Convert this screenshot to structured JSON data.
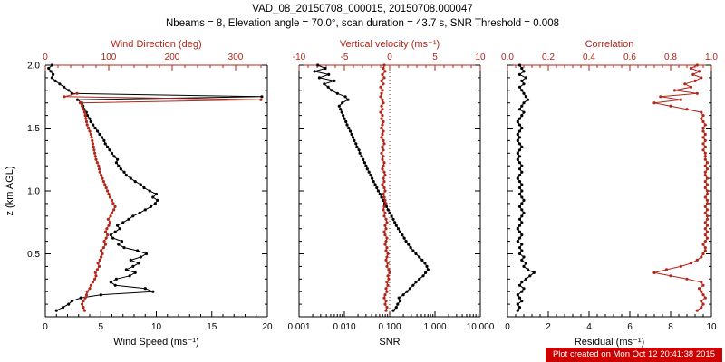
{
  "title": "VAD_08_20150708_000015, 20150708.000047",
  "subtitle": "Nbeams = 8, Elevation angle = 70.0°, scan duration = 43.7 s, SNR Threshold = 0.008",
  "footer": "Plot created on Mon Oct 12 20:41:38 2015",
  "colors": {
    "black": "#000000",
    "red": "#b3261a",
    "footer_bg": "#cc0000",
    "footer_fg": "#ffffff"
  },
  "chart_data": {
    "type": "line",
    "y_axis": {
      "label": "z (km AGL)",
      "range": [
        0,
        2
      ],
      "ticks": [
        0.5,
        1.0,
        1.5,
        2.0
      ],
      "tick_labels": [
        "0.5",
        "1.0",
        "1.5",
        "2.0"
      ]
    },
    "z": [
      0.05,
      0.075,
      0.1,
      0.125,
      0.15,
      0.175,
      0.2,
      0.225,
      0.25,
      0.275,
      0.3,
      0.325,
      0.35,
      0.375,
      0.4,
      0.425,
      0.45,
      0.475,
      0.5,
      0.525,
      0.55,
      0.575,
      0.6,
      0.625,
      0.65,
      0.675,
      0.7,
      0.725,
      0.75,
      0.775,
      0.8,
      0.825,
      0.85,
      0.875,
      0.9,
      0.925,
      0.95,
      0.975,
      1.0,
      1.025,
      1.05,
      1.075,
      1.1,
      1.125,
      1.15,
      1.175,
      1.2,
      1.225,
      1.25,
      1.275,
      1.3,
      1.325,
      1.35,
      1.375,
      1.4,
      1.425,
      1.45,
      1.475,
      1.5,
      1.525,
      1.55,
      1.575,
      1.6,
      1.625,
      1.65,
      1.675,
      1.7,
      1.725,
      1.75,
      1.775,
      1.8,
      1.825,
      1.85,
      1.875,
      1.9,
      1.925,
      1.95,
      1.975,
      2.0
    ],
    "panels": [
      {
        "name": "wind",
        "bottom_axis": {
          "label": "Wind Speed (ms⁻¹)",
          "scale": "linear",
          "range": [
            0,
            20
          ],
          "ticks": [
            0,
            5,
            10,
            15,
            20
          ],
          "tick_labels": [
            "0",
            "5",
            "10",
            "15",
            "20"
          ],
          "color": "black"
        },
        "top_axis": {
          "label": "Wind Direction (deg)",
          "scale": "linear",
          "range": [
            0,
            350
          ],
          "ticks": [
            0,
            100,
            200,
            300
          ],
          "tick_labels": [
            "0",
            "100",
            "200",
            "300"
          ],
          "color": "red"
        },
        "series": [
          {
            "name": "wind-speed",
            "axis": "bottom",
            "color": "black",
            "values": [
              1.0,
              1.6,
              2.1,
              2.4,
              3.2,
              5.0,
              9.7,
              9.0,
              6.3,
              5.9,
              6.4,
              7.6,
              8.1,
              7.3,
              7.9,
              8.4,
              7.7,
              8.6,
              9.1,
              8.3,
              7.1,
              6.6,
              6.9,
              6.1,
              5.9,
              6.3,
              6.7,
              6.5,
              7.0,
              7.5,
              7.9,
              8.5,
              9.0,
              9.5,
              9.9,
              10.1,
              9.7,
              10.0,
              9.4,
              8.9,
              8.6,
              8.1,
              7.7,
              7.3,
              7.1,
              6.8,
              6.6,
              6.4,
              6.5,
              6.2,
              6.0,
              5.8,
              5.6,
              5.4,
              5.3,
              5.1,
              4.9,
              4.7,
              4.5,
              4.3,
              4.1,
              4.0,
              3.8,
              3.7,
              3.5,
              3.4,
              3.3,
              2.9,
              19.5,
              2.4,
              2.1,
              1.7,
              1.3,
              0.9,
              0.6,
              0.7,
              0.5,
              0.3,
              0.6
            ]
          },
          {
            "name": "wind-direction",
            "axis": "top",
            "color": "red",
            "values": [
              62,
              60,
              58,
              60,
              63,
              65,
              66,
              70,
              72,
              75,
              78,
              80,
              79,
              82,
              85,
              83,
              86,
              88,
              90,
              88,
              92,
              95,
              93,
              96,
              98,
              95,
              97,
              100,
              102,
              99,
              103,
              105,
              108,
              110,
              107,
              105,
              102,
              100,
              98,
              96,
              94,
              92,
              90,
              88,
              86,
              85,
              84,
              82,
              80,
              79,
              78,
              77,
              76,
              75,
              74,
              73,
              72,
              70,
              68,
              66,
              65,
              64,
              63,
              62,
              60,
              58,
              55,
              340,
              30,
              50,
              null,
              null,
              null,
              null,
              null,
              null,
              null,
              null,
              null
            ]
          }
        ]
      },
      {
        "name": "snr",
        "bottom_axis": {
          "label": "SNR",
          "scale": "log",
          "range": [
            0.001,
            10
          ],
          "ticks": [
            0.001,
            0.01,
            0.1,
            1,
            10
          ],
          "tick_labels": [
            "0.001",
            "0.010",
            "0.100",
            "1.000",
            "10.000"
          ],
          "color": "black"
        },
        "top_axis": {
          "label": "Vertical velocity (ms⁻¹)",
          "scale": "linear",
          "range": [
            -10,
            10
          ],
          "ticks": [
            -10,
            -5,
            0,
            5,
            10
          ],
          "tick_labels": [
            "-10",
            "-5",
            "0",
            "5",
            "10"
          ],
          "color": "red"
        },
        "ref_line": {
          "axis": "top",
          "value": 0,
          "style": "dotted",
          "color": "red"
        },
        "series": [
          {
            "name": "snr",
            "axis": "bottom",
            "color": "black",
            "values": [
              0.12,
              0.14,
              0.15,
              0.17,
              0.16,
              0.2,
              0.24,
              0.28,
              0.33,
              0.38,
              0.45,
              0.55,
              0.62,
              0.7,
              0.66,
              0.6,
              0.52,
              0.45,
              0.38,
              0.33,
              0.29,
              0.26,
              0.23,
              0.21,
              0.19,
              0.17,
              0.155,
              0.14,
              0.13,
              0.12,
              0.11,
              0.1,
              0.092,
              0.085,
              0.078,
              0.072,
              0.066,
              0.061,
              0.056,
              0.052,
              0.048,
              0.044,
              0.041,
              0.038,
              0.035,
              0.032,
              0.03,
              0.028,
              0.026,
              0.024,
              0.022,
              0.021,
              0.019,
              0.018,
              0.0165,
              0.0155,
              0.0145,
              0.0135,
              0.0125,
              0.0115,
              0.0108,
              0.01,
              0.0094,
              0.0088,
              0.0082,
              0.0077,
              0.009,
              0.012,
              0.0105,
              0.007,
              0.0052,
              0.0044,
              0.0036,
              0.006,
              0.0028,
              0.0045,
              0.0022,
              0.0038,
              0.0026
            ]
          },
          {
            "name": "vertical-velocity",
            "axis": "top",
            "color": "red",
            "values": [
              -0.4,
              -0.3,
              -0.5,
              -0.4,
              -0.6,
              -0.5,
              -0.3,
              -0.4,
              -0.2,
              -0.3,
              -0.1,
              -0.2,
              0.0,
              -0.1,
              -0.3,
              -0.2,
              -0.4,
              -0.3,
              -0.2,
              -0.4,
              -0.3,
              -0.5,
              -0.4,
              -0.3,
              -0.5,
              -0.6,
              -0.4,
              -0.5,
              -0.3,
              -0.4,
              -0.6,
              -0.5,
              -0.7,
              -0.6,
              -0.4,
              -0.5,
              -0.6,
              -0.7,
              -0.5,
              -0.6,
              -0.8,
              -0.6,
              -0.7,
              -0.5,
              -0.6,
              -0.8,
              -0.7,
              -0.6,
              -0.8,
              -0.7,
              -0.9,
              -0.7,
              -0.8,
              -0.6,
              -0.7,
              -0.9,
              -0.8,
              -0.7,
              -0.9,
              -0.8,
              -0.7,
              -0.9,
              -0.8,
              -1.0,
              -0.8,
              -0.9,
              -0.7,
              -0.8,
              -1.0,
              -0.9,
              -0.8,
              -1.0,
              -0.7,
              -0.9,
              -0.6,
              -0.8,
              -0.5,
              -0.7,
              -0.6
            ]
          }
        ]
      },
      {
        "name": "residual",
        "bottom_axis": {
          "label": "Residual (ms⁻¹)",
          "scale": "linear",
          "range": [
            0,
            10
          ],
          "ticks": [
            0,
            2,
            4,
            6,
            8,
            10
          ],
          "tick_labels": [
            "0",
            "2",
            "4",
            "6",
            "8",
            "10"
          ],
          "color": "black"
        },
        "top_axis": {
          "label": "Correlation",
          "scale": "linear",
          "range": [
            0,
            1
          ],
          "ticks": [
            0,
            0.2,
            0.4,
            0.6,
            0.8,
            1.0
          ],
          "tick_labels": [
            "0.0",
            "0.2",
            "0.4",
            "0.6",
            "0.8",
            "1.0"
          ],
          "color": "red"
        },
        "series": [
          {
            "name": "residual",
            "axis": "bottom",
            "color": "black",
            "values": [
              0.5,
              0.6,
              0.5,
              0.7,
              0.6,
              0.5,
              0.7,
              0.8,
              0.6,
              0.7,
              0.9,
              1.1,
              1.3,
              1.0,
              0.8,
              0.9,
              0.7,
              0.8,
              0.6,
              0.7,
              0.6,
              0.7,
              0.5,
              0.6,
              0.7,
              0.6,
              0.5,
              0.6,
              0.7,
              0.6,
              0.7,
              0.8,
              0.7,
              0.6,
              0.7,
              0.8,
              0.7,
              0.6,
              0.7,
              0.6,
              0.7,
              0.6,
              0.5,
              0.6,
              0.7,
              0.6,
              0.7,
              0.6,
              0.5,
              0.6,
              0.5,
              0.6,
              0.7,
              0.6,
              0.5,
              0.6,
              0.5,
              0.6,
              0.7,
              0.6,
              0.5,
              0.6,
              0.7,
              0.8,
              0.6,
              0.7,
              0.8,
              1.0,
              0.9,
              0.8,
              0.7,
              0.6,
              0.8,
              0.7,
              0.9,
              0.6,
              0.8,
              0.7,
              0.6
            ]
          },
          {
            "name": "correlation",
            "axis": "top",
            "color": "red",
            "values": [
              0.93,
              0.95,
              0.96,
              0.95,
              0.97,
              0.96,
              0.95,
              0.94,
              0.96,
              0.95,
              0.88,
              0.8,
              0.72,
              0.78,
              0.85,
              0.9,
              0.93,
              0.95,
              0.96,
              0.97,
              0.97,
              0.96,
              0.97,
              0.98,
              0.97,
              0.98,
              0.97,
              0.98,
              0.97,
              0.98,
              0.98,
              0.97,
              0.98,
              0.97,
              0.98,
              0.98,
              0.97,
              0.98,
              0.98,
              0.97,
              0.98,
              0.97,
              0.98,
              0.97,
              0.97,
              0.98,
              0.97,
              0.98,
              0.97,
              0.97,
              0.97,
              0.96,
              0.97,
              0.96,
              0.97,
              0.96,
              0.97,
              0.96,
              0.96,
              0.97,
              0.96,
              0.95,
              0.96,
              0.95,
              0.88,
              0.8,
              0.72,
              0.85,
              0.75,
              0.93,
              0.82,
              0.9,
              0.87,
              0.92,
              0.95,
              0.91,
              0.94,
              0.9,
              0.93
            ]
          }
        ]
      }
    ]
  }
}
